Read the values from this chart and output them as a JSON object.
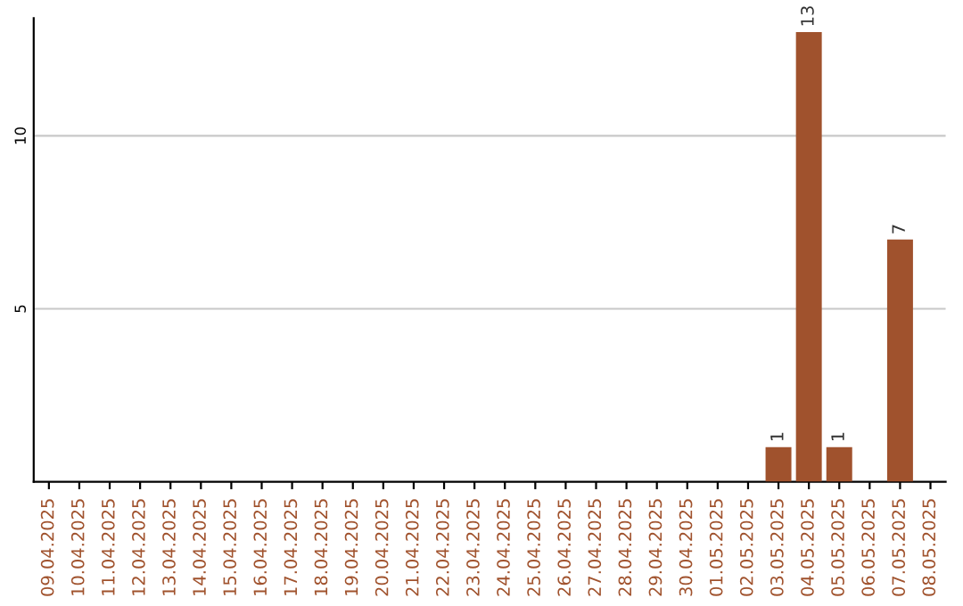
{
  "chart_data": {
    "type": "bar",
    "categories": [
      "09.04.2025",
      "10.04.2025",
      "11.04.2025",
      "12.04.2025",
      "13.04.2025",
      "14.04.2025",
      "15.04.2025",
      "16.04.2025",
      "17.04.2025",
      "18.04.2025",
      "19.04.2025",
      "20.04.2025",
      "21.04.2025",
      "22.04.2025",
      "23.04.2025",
      "24.04.2025",
      "25.04.2025",
      "26.04.2025",
      "27.04.2025",
      "28.04.2025",
      "29.04.2025",
      "30.04.2025",
      "01.05.2025",
      "02.05.2025",
      "03.05.2025",
      "04.05.2025",
      "05.05.2025",
      "06.05.2025",
      "07.05.2025",
      "08.05.2025"
    ],
    "values": [
      0,
      0,
      0,
      0,
      0,
      0,
      0,
      0,
      0,
      0,
      0,
      0,
      0,
      0,
      0,
      0,
      0,
      0,
      0,
      0,
      0,
      0,
      0,
      0,
      1,
      13,
      1,
      0,
      7,
      0
    ],
    "value_labels": [
      null,
      null,
      null,
      null,
      null,
      null,
      null,
      null,
      null,
      null,
      null,
      null,
      null,
      null,
      null,
      null,
      null,
      null,
      null,
      null,
      null,
      null,
      null,
      null,
      "1",
      "13",
      "1",
      null,
      "7",
      null
    ],
    "color": "#a0522d",
    "ylim": [
      0,
      13.4
    ],
    "yticks": [
      5,
      10
    ],
    "grid": "y"
  }
}
